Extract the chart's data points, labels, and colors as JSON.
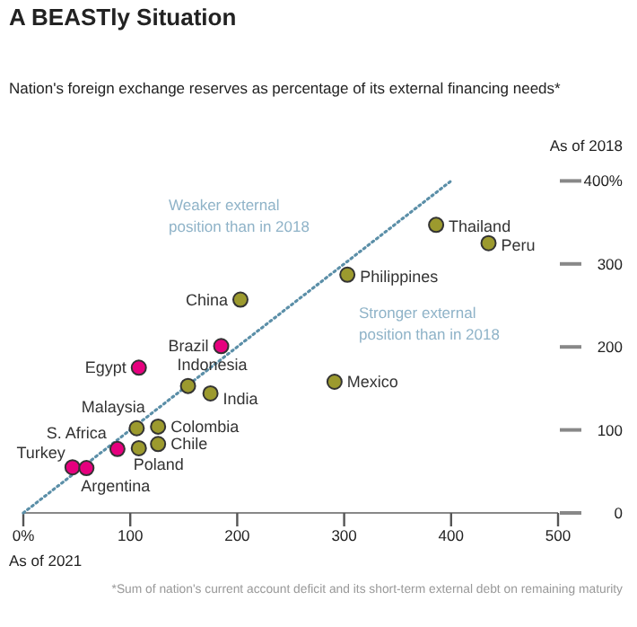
{
  "chart_data": {
    "type": "scatter",
    "title": "A BEASTly Situation",
    "subtitle": "Nation's foreign exchange reserves as percentage of its external financing needs*",
    "xlabel": "As of 2021",
    "ylabel": "As of 2018",
    "annotations": [
      "Weaker external position than in 2018",
      "Stronger external position than in 2018",
      "*Sum of nation's current account deficit and its short-term external debt on remaining maturity"
    ],
    "xlim": [
      0,
      500
    ],
    "xticks": [
      {
        "value": 0,
        "label": "0%"
      },
      100,
      200,
      300,
      400,
      500
    ],
    "ylim": [
      0,
      400
    ],
    "yticks": [
      0,
      100,
      200,
      300,
      {
        "value": 400,
        "label": "400%"
      }
    ],
    "grid": false,
    "legend": false,
    "marker": "circle",
    "series": [
      {
        "type": "line",
        "color": "#5b8fa8",
        "line_style": "dotted",
        "marker": "none",
        "x": [
          0,
          400
        ],
        "values": [
          0,
          400
        ]
      },
      {
        "name": "Thailand",
        "color": "#9c9a2e",
        "x": [
          386
        ],
        "values": [
          347
        ]
      },
      {
        "name": "Peru",
        "color": "#9c9a2e",
        "x": [
          435
        ],
        "values": [
          325
        ]
      },
      {
        "name": "Philippines",
        "color": "#9c9a2e",
        "x": [
          303
        ],
        "values": [
          287
        ]
      },
      {
        "name": "China",
        "color": "#9c9a2e",
        "x": [
          203
        ],
        "values": [
          257
        ]
      },
      {
        "name": "Brazil",
        "color": "#e6007e",
        "x": [
          185
        ],
        "values": [
          201
        ]
      },
      {
        "name": "Egypt",
        "color": "#e6007e",
        "x": [
          108
        ],
        "values": [
          175
        ]
      },
      {
        "name": "Indonesia",
        "color": "#9c9a2e",
        "x": [
          154
        ],
        "values": [
          153
        ]
      },
      {
        "name": "India",
        "color": "#9c9a2e",
        "x": [
          175
        ],
        "values": [
          144
        ]
      },
      {
        "name": "Mexico",
        "color": "#9c9a2e",
        "x": [
          291
        ],
        "values": [
          158
        ]
      },
      {
        "name": "Malaysia",
        "color": "#9c9a2e",
        "x": [
          106
        ],
        "values": [
          102
        ]
      },
      {
        "name": "Colombia",
        "color": "#9c9a2e",
        "x": [
          126
        ],
        "values": [
          104
        ]
      },
      {
        "name": "Chile",
        "color": "#9c9a2e",
        "x": [
          126
        ],
        "values": [
          83
        ]
      },
      {
        "name": "Poland",
        "color": "#9c9a2e",
        "x": [
          108
        ],
        "values": [
          78
        ]
      },
      {
        "name": "S. Africa",
        "color": "#e6007e",
        "x": [
          88
        ],
        "values": [
          77
        ]
      },
      {
        "name": "Turkey",
        "color": "#e6007e",
        "x": [
          46
        ],
        "values": [
          55
        ]
      },
      {
        "name": "Argentina",
        "color": "#e6007e",
        "x": [
          59
        ],
        "values": [
          54
        ]
      }
    ]
  }
}
